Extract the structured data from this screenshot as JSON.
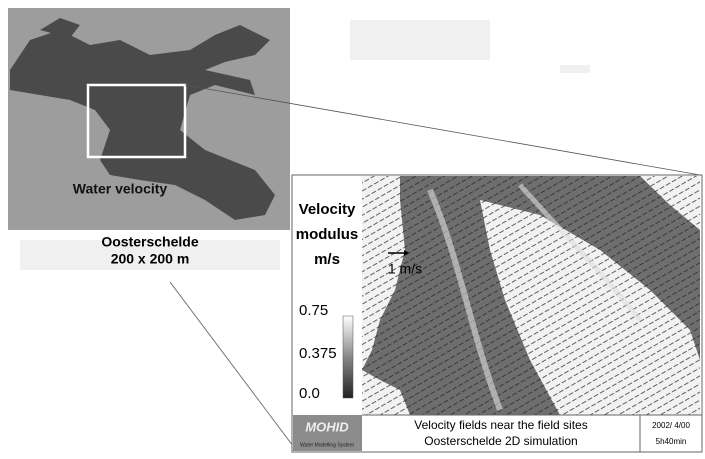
{
  "overview": {
    "label": "Water velocity",
    "caption": {
      "line1": "Oosterschelde",
      "line2": "200 x 200 m"
    }
  },
  "detail": {
    "legend": {
      "title": {
        "line1": "Velocity",
        "line2": "modulus",
        "line3": "m/s"
      },
      "ticks": [
        "0.75",
        "0.375",
        "0.0"
      ]
    },
    "scale_arrow": "1 m/s",
    "logo": {
      "name": "MOHID",
      "subtitle": "Water Modelling System"
    },
    "footer": {
      "line1": "Velocity fields near the field sites",
      "line2": "Oosterschelde 2D simulation",
      "date": "2002/ 4/00",
      "time": "5h40min"
    }
  }
}
